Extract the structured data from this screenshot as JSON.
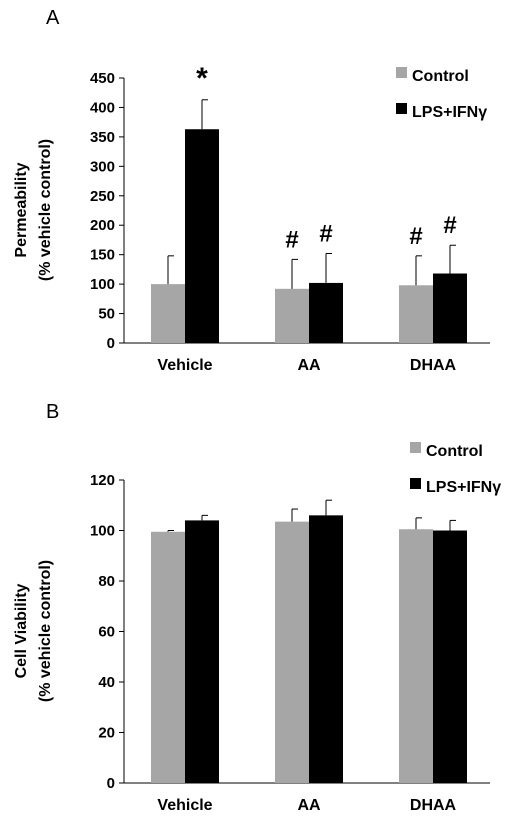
{
  "chart_data": [
    {
      "panel": "A",
      "type": "bar",
      "ylabel": [
        "Permeability",
        "(% vehicle control)"
      ],
      "xlabel": "",
      "ylim": [
        0,
        450
      ],
      "yticks": [
        0,
        50,
        100,
        150,
        200,
        250,
        300,
        350,
        400,
        450
      ],
      "categories": [
        "Vehicle",
        "AA",
        "DHAA"
      ],
      "legend_position": "top-right",
      "series": [
        {
          "name": "Control",
          "color": "#a6a6a6",
          "values": [
            100,
            92,
            98
          ],
          "errors": [
            48,
            50,
            50
          ],
          "annotations": [
            "",
            "#",
            "#"
          ]
        },
        {
          "name": "LPS+IFNγ",
          "color": "#000000",
          "values": [
            363,
            102,
            118
          ],
          "errors": [
            50,
            50,
            48
          ],
          "annotations": [
            "*",
            "#",
            "#"
          ]
        }
      ]
    },
    {
      "panel": "B",
      "type": "bar",
      "ylabel": [
        "Cell Viability",
        "(% vehicle control)"
      ],
      "xlabel": "",
      "ylim": [
        0,
        120
      ],
      "yticks": [
        0,
        20,
        40,
        60,
        80,
        100,
        120
      ],
      "categories": [
        "Vehicle",
        "AA",
        "DHAA"
      ],
      "legend_position": "top-right",
      "series": [
        {
          "name": "Control",
          "color": "#a6a6a6",
          "values": [
            99.5,
            103.5,
            100.5
          ],
          "errors": [
            0.5,
            5,
            4.5
          ],
          "annotations": [
            "",
            "",
            ""
          ]
        },
        {
          "name": "LPS+IFNγ",
          "color": "#000000",
          "values": [
            104,
            106,
            100
          ],
          "errors": [
            2,
            6,
            4
          ],
          "annotations": [
            "",
            "",
            ""
          ]
        }
      ]
    }
  ]
}
